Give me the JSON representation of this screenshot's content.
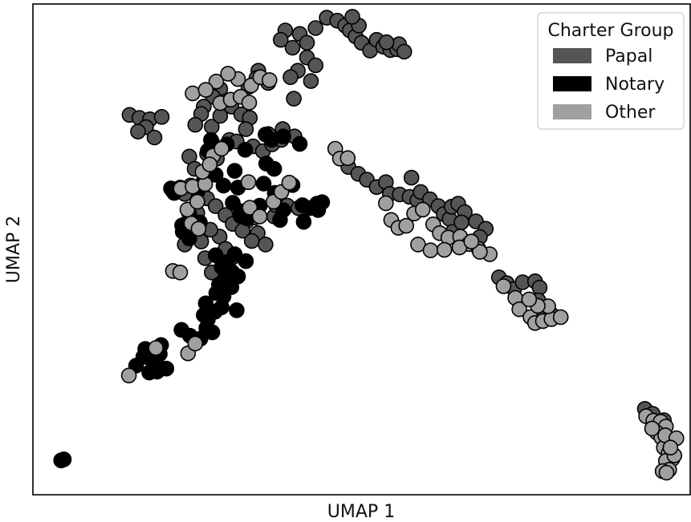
{
  "chart_data": {
    "type": "scatter",
    "title": "",
    "xlabel": "UMAP 1",
    "ylabel": "UMAP 2",
    "xlim": [
      0,
      100
    ],
    "ylim": [
      0,
      100
    ],
    "grid": false,
    "legend": {
      "title": "Charter Group",
      "position": "top-right",
      "entries": [
        {
          "name": "Papal",
          "color": "#555555"
        },
        {
          "name": "Notary",
          "color": "#000000"
        },
        {
          "name": "Other",
          "color": "#a0a0a0"
        }
      ]
    },
    "series": [
      {
        "name": "Papal",
        "color": "#555555",
        "points": [
          [
            38.4,
            94.6
          ],
          [
            37.7,
            92.7
          ],
          [
            39.5,
            91.1
          ],
          [
            40.6,
            93.9
          ],
          [
            41.7,
            92.1
          ],
          [
            43.0,
            95.1
          ],
          [
            44.7,
            97.2
          ],
          [
            46.3,
            96.6
          ],
          [
            47.5,
            95.6
          ],
          [
            48.2,
            94.6
          ],
          [
            49.1,
            93.4
          ],
          [
            50.0,
            92.1
          ],
          [
            51.3,
            90.5
          ],
          [
            49.6,
            95.6
          ],
          [
            48.6,
            97.4
          ],
          [
            52.3,
            92.7
          ],
          [
            53.3,
            91.3
          ],
          [
            54.4,
            90.6
          ],
          [
            55.4,
            90.8
          ],
          [
            55.7,
            91.8
          ],
          [
            53.8,
            92.2
          ],
          [
            56.5,
            90.3
          ],
          [
            41.7,
            89.1
          ],
          [
            43.0,
            87.5
          ],
          [
            40.3,
            86.4
          ],
          [
            42.3,
            84.3
          ],
          [
            34.3,
            86.4
          ],
          [
            34.0,
            84.9
          ],
          [
            32.8,
            83.1
          ],
          [
            35.8,
            83.9
          ],
          [
            39.2,
            85.1
          ],
          [
            39.7,
            80.7
          ],
          [
            28.5,
            82.7
          ],
          [
            27.4,
            81.1
          ],
          [
            29.2,
            80.1
          ],
          [
            26.0,
            79.1
          ],
          [
            25.6,
            77.6
          ],
          [
            24.7,
            75.4
          ],
          [
            27.2,
            75.0
          ],
          [
            28.5,
            77.2
          ],
          [
            30.2,
            79.1
          ],
          [
            31.7,
            77.5
          ],
          [
            33.0,
            76.8
          ],
          [
            14.7,
            77.4
          ],
          [
            16.2,
            76.8
          ],
          [
            17.8,
            76.5
          ],
          [
            19.6,
            77.0
          ],
          [
            17.2,
            74.9
          ],
          [
            18.5,
            72.8
          ],
          [
            16.0,
            74.0
          ],
          [
            29.9,
            72.3
          ],
          [
            31.0,
            72.0
          ],
          [
            33.5,
            71.0
          ],
          [
            35.0,
            70.0
          ],
          [
            36.4,
            71.4
          ],
          [
            37.8,
            72.3
          ],
          [
            39.8,
            73.0
          ],
          [
            38.0,
            74.5
          ],
          [
            35.8,
            73.5
          ],
          [
            32.4,
            74.5
          ],
          [
            28.0,
            68.5
          ],
          [
            26.5,
            69.5
          ],
          [
            23.8,
            68.9
          ],
          [
            24.6,
            66.4
          ],
          [
            22.4,
            62.6
          ],
          [
            23.1,
            61.3
          ],
          [
            24.0,
            63.0
          ],
          [
            26.5,
            60.4
          ],
          [
            27.8,
            58.8
          ],
          [
            25.0,
            57.4
          ],
          [
            29.3,
            57.0
          ],
          [
            30.4,
            55.2
          ],
          [
            32.5,
            55.7
          ],
          [
            31.9,
            53.8
          ],
          [
            33.8,
            56.5
          ],
          [
            34.2,
            53.3
          ],
          [
            28.4,
            52.6
          ],
          [
            27.0,
            54.0
          ],
          [
            25.6,
            51.6
          ],
          [
            23.1,
            51.0
          ],
          [
            36.7,
            56.7
          ],
          [
            30.4,
            48.4
          ],
          [
            29.3,
            50.1
          ],
          [
            26.2,
            48.2
          ],
          [
            27.2,
            45.3
          ],
          [
            33.3,
            51.7
          ],
          [
            35.4,
            51.0
          ],
          [
            37.0,
            59.0
          ],
          [
            38.7,
            58.9
          ],
          [
            40.4,
            58.4
          ],
          [
            48.0,
            66.8
          ],
          [
            49.5,
            65.4
          ],
          [
            50.8,
            64.2
          ],
          [
            52.3,
            62.7
          ],
          [
            53.7,
            63.7
          ],
          [
            54.3,
            61.3
          ],
          [
            55.8,
            61.2
          ],
          [
            57.3,
            60.7
          ],
          [
            58.5,
            60.0
          ],
          [
            57.6,
            64.6
          ],
          [
            59.0,
            61.7
          ],
          [
            60.4,
            60.2
          ],
          [
            61.7,
            58.8
          ],
          [
            62.5,
            57.2
          ],
          [
            63.4,
            56.2
          ],
          [
            63.7,
            58.7
          ],
          [
            64.7,
            59.3
          ],
          [
            65.7,
            57.6
          ],
          [
            67.4,
            55.7
          ],
          [
            68.9,
            54.2
          ],
          [
            68.0,
            52.5
          ],
          [
            66.4,
            51.2
          ],
          [
            63.9,
            53.6
          ],
          [
            65.2,
            55.5
          ],
          [
            70.9,
            44.3
          ],
          [
            72.1,
            43.1
          ],
          [
            73.2,
            41.9
          ],
          [
            74.5,
            43.3
          ],
          [
            76.4,
            43.5
          ],
          [
            77.1,
            42.2
          ],
          [
            76.9,
            39.6
          ],
          [
            77.5,
            37.2
          ],
          [
            78.8,
            36.9
          ],
          [
            93.1,
            17.5
          ],
          [
            94.3,
            16.5
          ],
          [
            95.1,
            14.2
          ],
          [
            96.0,
            15.2
          ]
        ]
      },
      {
        "name": "Notary",
        "color": "#000000",
        "points": [
          [
            4.7,
            7.2
          ],
          [
            4.3,
            7.0
          ],
          [
            15.7,
            26.3
          ],
          [
            16.8,
            28.1
          ],
          [
            18.0,
            27.6
          ],
          [
            19.3,
            28.7
          ],
          [
            18.8,
            26.6
          ],
          [
            17.7,
            24.9
          ],
          [
            18.9,
            25.1
          ],
          [
            20.3,
            25.7
          ],
          [
            19.5,
            30.5
          ],
          [
            17.1,
            29.7
          ],
          [
            22.6,
            33.6
          ],
          [
            23.9,
            32.4
          ],
          [
            25.5,
            31.8
          ],
          [
            26.4,
            34.0
          ],
          [
            27.3,
            33.1
          ],
          [
            26.0,
            36.6
          ],
          [
            27.7,
            37.3
          ],
          [
            28.7,
            38.2
          ],
          [
            29.0,
            40.4
          ],
          [
            28.3,
            42.8
          ],
          [
            29.4,
            44.1
          ],
          [
            30.2,
            42.3
          ],
          [
            28.7,
            46.4
          ],
          [
            27.8,
            48.8
          ],
          [
            30.7,
            49.0
          ],
          [
            29.5,
            47.4
          ],
          [
            28.9,
            46.3
          ],
          [
            26.3,
            39.0
          ],
          [
            27.9,
            41.1
          ],
          [
            31.0,
            37.6
          ],
          [
            30.3,
            45.4
          ],
          [
            26.6,
            35.7
          ],
          [
            23.8,
            52.2
          ],
          [
            22.7,
            54.9
          ],
          [
            25.4,
            55.5
          ],
          [
            23.8,
            57.2
          ],
          [
            22.8,
            53.6
          ],
          [
            21.5,
            61.5
          ],
          [
            25.1,
            61.9
          ],
          [
            26.0,
            64.0
          ],
          [
            27.8,
            65.2
          ],
          [
            29.0,
            63.0
          ],
          [
            31.2,
            62.6
          ],
          [
            30.7,
            66.0
          ],
          [
            26.6,
            70.1
          ],
          [
            27.1,
            72.3
          ],
          [
            29.5,
            71.4
          ],
          [
            32.3,
            70.3
          ],
          [
            35.4,
            73.4
          ],
          [
            36.3,
            72.3
          ],
          [
            38.1,
            73.0
          ],
          [
            40.6,
            71.5
          ],
          [
            35.5,
            67.5
          ],
          [
            35.1,
            63.4
          ],
          [
            36.7,
            66.4
          ],
          [
            30.4,
            59.5
          ],
          [
            31.6,
            57.8
          ],
          [
            32.6,
            56.3
          ],
          [
            34.5,
            58.9
          ],
          [
            36.8,
            61.5
          ],
          [
            41.0,
            59.0
          ],
          [
            42.1,
            58.4
          ],
          [
            43.2,
            59.3
          ],
          [
            44.0,
            59.6
          ],
          [
            43.4,
            58.0
          ],
          [
            41.2,
            55.6
          ],
          [
            38.1,
            58.0
          ],
          [
            39.5,
            63.1
          ],
          [
            37.6,
            56.0
          ],
          [
            32.4,
            47.6
          ],
          [
            31.2,
            44.5
          ],
          [
            31.6,
            56.8
          ],
          [
            27.2,
            72.0
          ],
          [
            21.0,
            62.4
          ],
          [
            21.3,
            61.9
          ]
        ]
      },
      {
        "name": "Other",
        "color": "#a0a0a0",
        "points": [
          [
            21.3,
            45.6
          ],
          [
            22.4,
            45.3
          ],
          [
            22.5,
            62.4
          ],
          [
            24.3,
            62.8
          ],
          [
            26.2,
            63.3
          ],
          [
            25.8,
            65.8
          ],
          [
            23.5,
            58.1
          ],
          [
            25.0,
            59.7
          ],
          [
            24.1,
            55.3
          ],
          [
            25.2,
            54.2
          ],
          [
            32.8,
            63.7
          ],
          [
            33.0,
            58.5
          ],
          [
            34.5,
            56.7
          ],
          [
            36.6,
            59.7
          ],
          [
            37.8,
            61.7
          ],
          [
            39.0,
            63.6
          ],
          [
            27.4,
            69.1
          ],
          [
            28.7,
            70.5
          ],
          [
            26.9,
            67.3
          ],
          [
            28.5,
            79.8
          ],
          [
            30.1,
            80.5
          ],
          [
            31.6,
            81.1
          ],
          [
            32.9,
            79.9
          ],
          [
            33.2,
            83.4
          ],
          [
            34.6,
            85.1
          ],
          [
            36.0,
            84.5
          ],
          [
            31.2,
            84.7
          ],
          [
            27.9,
            84.2
          ],
          [
            29.7,
            85.8
          ],
          [
            24.3,
            81.8
          ],
          [
            26.3,
            82.5
          ],
          [
            23.6,
            28.8
          ],
          [
            24.7,
            30.8
          ],
          [
            18.7,
            29.9
          ],
          [
            14.6,
            24.3
          ],
          [
            46.0,
            70.5
          ],
          [
            46.7,
            68.5
          ],
          [
            47.9,
            68.6
          ],
          [
            53.7,
            59.4
          ],
          [
            54.5,
            56.0
          ],
          [
            55.6,
            54.4
          ],
          [
            56.8,
            54.8
          ],
          [
            58.0,
            57.3
          ],
          [
            59.3,
            58.1
          ],
          [
            60.9,
            55.1
          ],
          [
            61.9,
            53.3
          ],
          [
            63.2,
            52.4
          ],
          [
            65.0,
            52.6
          ],
          [
            66.3,
            51.1
          ],
          [
            67.8,
            50.1
          ],
          [
            69.5,
            49.0
          ],
          [
            68.0,
            49.5
          ],
          [
            58.6,
            51.0
          ],
          [
            60.5,
            49.8
          ],
          [
            62.6,
            49.9
          ],
          [
            64.9,
            50.4
          ],
          [
            66.7,
            51.6
          ],
          [
            71.6,
            42.5
          ],
          [
            73.4,
            40.1
          ],
          [
            74.0,
            37.8
          ],
          [
            75.7,
            36.2
          ],
          [
            76.4,
            35.0
          ],
          [
            77.6,
            35.4
          ],
          [
            78.9,
            35.8
          ],
          [
            80.3,
            36.2
          ],
          [
            78.4,
            38.4
          ],
          [
            76.8,
            38.5
          ],
          [
            75.5,
            39.8
          ],
          [
            93.3,
            16.0
          ],
          [
            94.4,
            15.1
          ],
          [
            95.5,
            14.9
          ],
          [
            96.3,
            13.9
          ],
          [
            94.9,
            12.7
          ],
          [
            95.6,
            11.7
          ],
          [
            94.2,
            13.5
          ],
          [
            96.0,
            9.6
          ],
          [
            96.7,
            8.4
          ],
          [
            97.3,
            7.3
          ],
          [
            96.3,
            6.9
          ],
          [
            96.8,
            5.1
          ],
          [
            95.8,
            4.8
          ],
          [
            96.4,
            4.5
          ],
          [
            96.2,
            12.1
          ],
          [
            97.6,
            8.0
          ],
          [
            97.9,
            11.5
          ],
          [
            97.0,
            9.6
          ]
        ]
      }
    ]
  }
}
